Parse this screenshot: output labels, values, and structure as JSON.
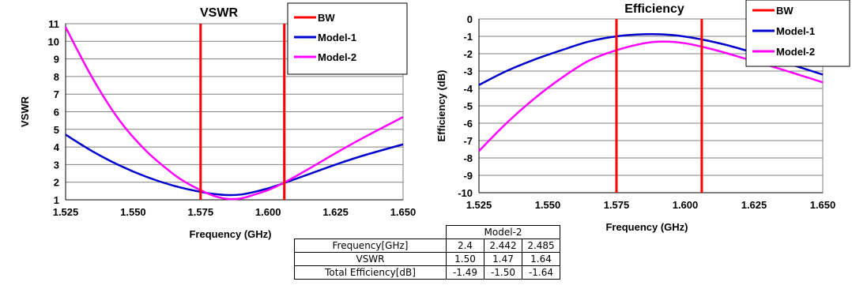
{
  "colors": {
    "bw": "#ff0000",
    "model1": "#0000cc",
    "model2": "#ff00ff",
    "grid": "#808080"
  },
  "chart_data": [
    {
      "type": "line",
      "title": "VSWR",
      "xlabel": "Frequency (GHz)",
      "ylabel": "VSWR",
      "xlim": [
        1.525,
        1.65
      ],
      "ylim": [
        1,
        11
      ],
      "x_ticks": [
        "1.525",
        "1.550",
        "1.575",
        "1.600",
        "1.625",
        "1.650"
      ],
      "y_ticks": [
        "1",
        "2",
        "3",
        "4",
        "5",
        "6",
        "7",
        "8",
        "9",
        "10",
        "11"
      ],
      "grid": true,
      "legend_position": "top-right",
      "bw_lines": [
        1.575,
        1.606
      ],
      "series": [
        {
          "name": "BW",
          "color": "#ff0000",
          "x": [],
          "y": []
        },
        {
          "name": "Model-1",
          "color": "#0000cc",
          "x": [
            1.525,
            1.535,
            1.545,
            1.555,
            1.565,
            1.575,
            1.58,
            1.585,
            1.59,
            1.595,
            1.6,
            1.605,
            1.615,
            1.625,
            1.635,
            1.65
          ],
          "y": [
            4.7,
            3.75,
            2.95,
            2.3,
            1.8,
            1.45,
            1.33,
            1.27,
            1.3,
            1.45,
            1.65,
            1.9,
            2.45,
            3.0,
            3.5,
            4.15
          ]
        },
        {
          "name": "Model-2",
          "color": "#ff00ff",
          "x": [
            1.525,
            1.535,
            1.545,
            1.555,
            1.565,
            1.57,
            1.575,
            1.58,
            1.585,
            1.59,
            1.595,
            1.6,
            1.605,
            1.615,
            1.625,
            1.635,
            1.65
          ],
          "y": [
            10.8,
            7.9,
            5.5,
            3.75,
            2.45,
            1.95,
            1.55,
            1.22,
            1.05,
            1.08,
            1.3,
            1.55,
            1.9,
            2.75,
            3.65,
            4.5,
            5.7
          ]
        }
      ]
    },
    {
      "type": "line",
      "title": "Efficiency",
      "xlabel": "Frequency (GHz)",
      "ylabel": "Efficiency (dB)",
      "xlim": [
        1.525,
        1.65
      ],
      "ylim": [
        -10,
        0
      ],
      "x_ticks": [
        "1.525",
        "1.550",
        "1.575",
        "1.600",
        "1.625",
        "1.650"
      ],
      "y_ticks": [
        "0",
        "-1",
        "-2",
        "-3",
        "-4",
        "-5",
        "-6",
        "-7",
        "-8",
        "-9",
        "-10"
      ],
      "grid": true,
      "legend_position": "top-right",
      "bw_lines": [
        1.575,
        1.606
      ],
      "series": [
        {
          "name": "BW",
          "color": "#ff0000",
          "x": [],
          "y": []
        },
        {
          "name": "Model-1",
          "color": "#0000cc",
          "x": [
            1.525,
            1.535,
            1.545,
            1.555,
            1.565,
            1.575,
            1.585,
            1.595,
            1.605,
            1.615,
            1.625,
            1.635,
            1.65
          ],
          "y": [
            -3.8,
            -3.0,
            -2.35,
            -1.8,
            -1.3,
            -1.0,
            -0.88,
            -0.92,
            -1.15,
            -1.5,
            -1.95,
            -2.45,
            -3.2
          ]
        },
        {
          "name": "Model-2",
          "color": "#ff00ff",
          "x": [
            1.525,
            1.535,
            1.545,
            1.555,
            1.565,
            1.575,
            1.585,
            1.592,
            1.6,
            1.61,
            1.62,
            1.635,
            1.65
          ],
          "y": [
            -7.6,
            -6.0,
            -4.6,
            -3.4,
            -2.4,
            -1.8,
            -1.4,
            -1.3,
            -1.4,
            -1.75,
            -2.2,
            -2.9,
            -3.65
          ]
        }
      ]
    }
  ],
  "table": {
    "group_header": "Model-2",
    "rows": [
      {
        "label": "Frequency[GHz]",
        "values": [
          "2.4",
          "2.442",
          "2.485"
        ]
      },
      {
        "label": "VSWR",
        "values": [
          "1.50",
          "1.47",
          "1.64"
        ]
      },
      {
        "label": "Total Efficiency[dB]",
        "values": [
          "-1.49",
          "-1.50",
          "-1.64"
        ]
      }
    ]
  }
}
